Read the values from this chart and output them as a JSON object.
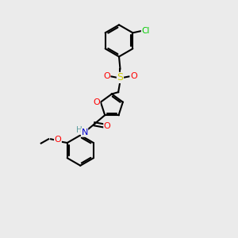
{
  "background_color": "#ebebeb",
  "bond_color": "#000000",
  "atom_colors": {
    "O": "#ff0000",
    "N": "#0000cc",
    "S": "#cccc00",
    "Cl": "#00cc00",
    "H": "#5f9ea0",
    "C": "#000000"
  },
  "figsize": [
    3.0,
    3.0
  ],
  "dpi": 100
}
